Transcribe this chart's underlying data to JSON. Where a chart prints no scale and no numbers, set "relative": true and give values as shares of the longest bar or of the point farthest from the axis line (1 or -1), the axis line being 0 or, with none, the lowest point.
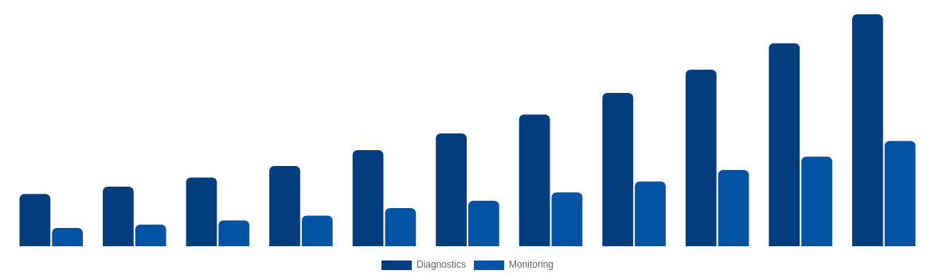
{
  "chart_data": {
    "type": "bar",
    "relative": true,
    "legend": "bottom",
    "grid": false,
    "categories": [
      null,
      null,
      null,
      null,
      null,
      null,
      null,
      null,
      null,
      null,
      null
    ],
    "series": [
      {
        "name": "Diagnostics",
        "color": "#023e7d",
        "values": [
          0.225,
          0.257,
          0.296,
          0.346,
          0.414,
          0.486,
          0.568,
          0.661,
          0.761,
          0.875,
          1
        ]
      },
      {
        "name": "Monitoring",
        "color": "#0353a4",
        "values": [
          0.079,
          0.093,
          0.111,
          0.132,
          0.164,
          0.196,
          0.232,
          0.279,
          0.329,
          0.386,
          0.454
        ]
      }
    ]
  }
}
